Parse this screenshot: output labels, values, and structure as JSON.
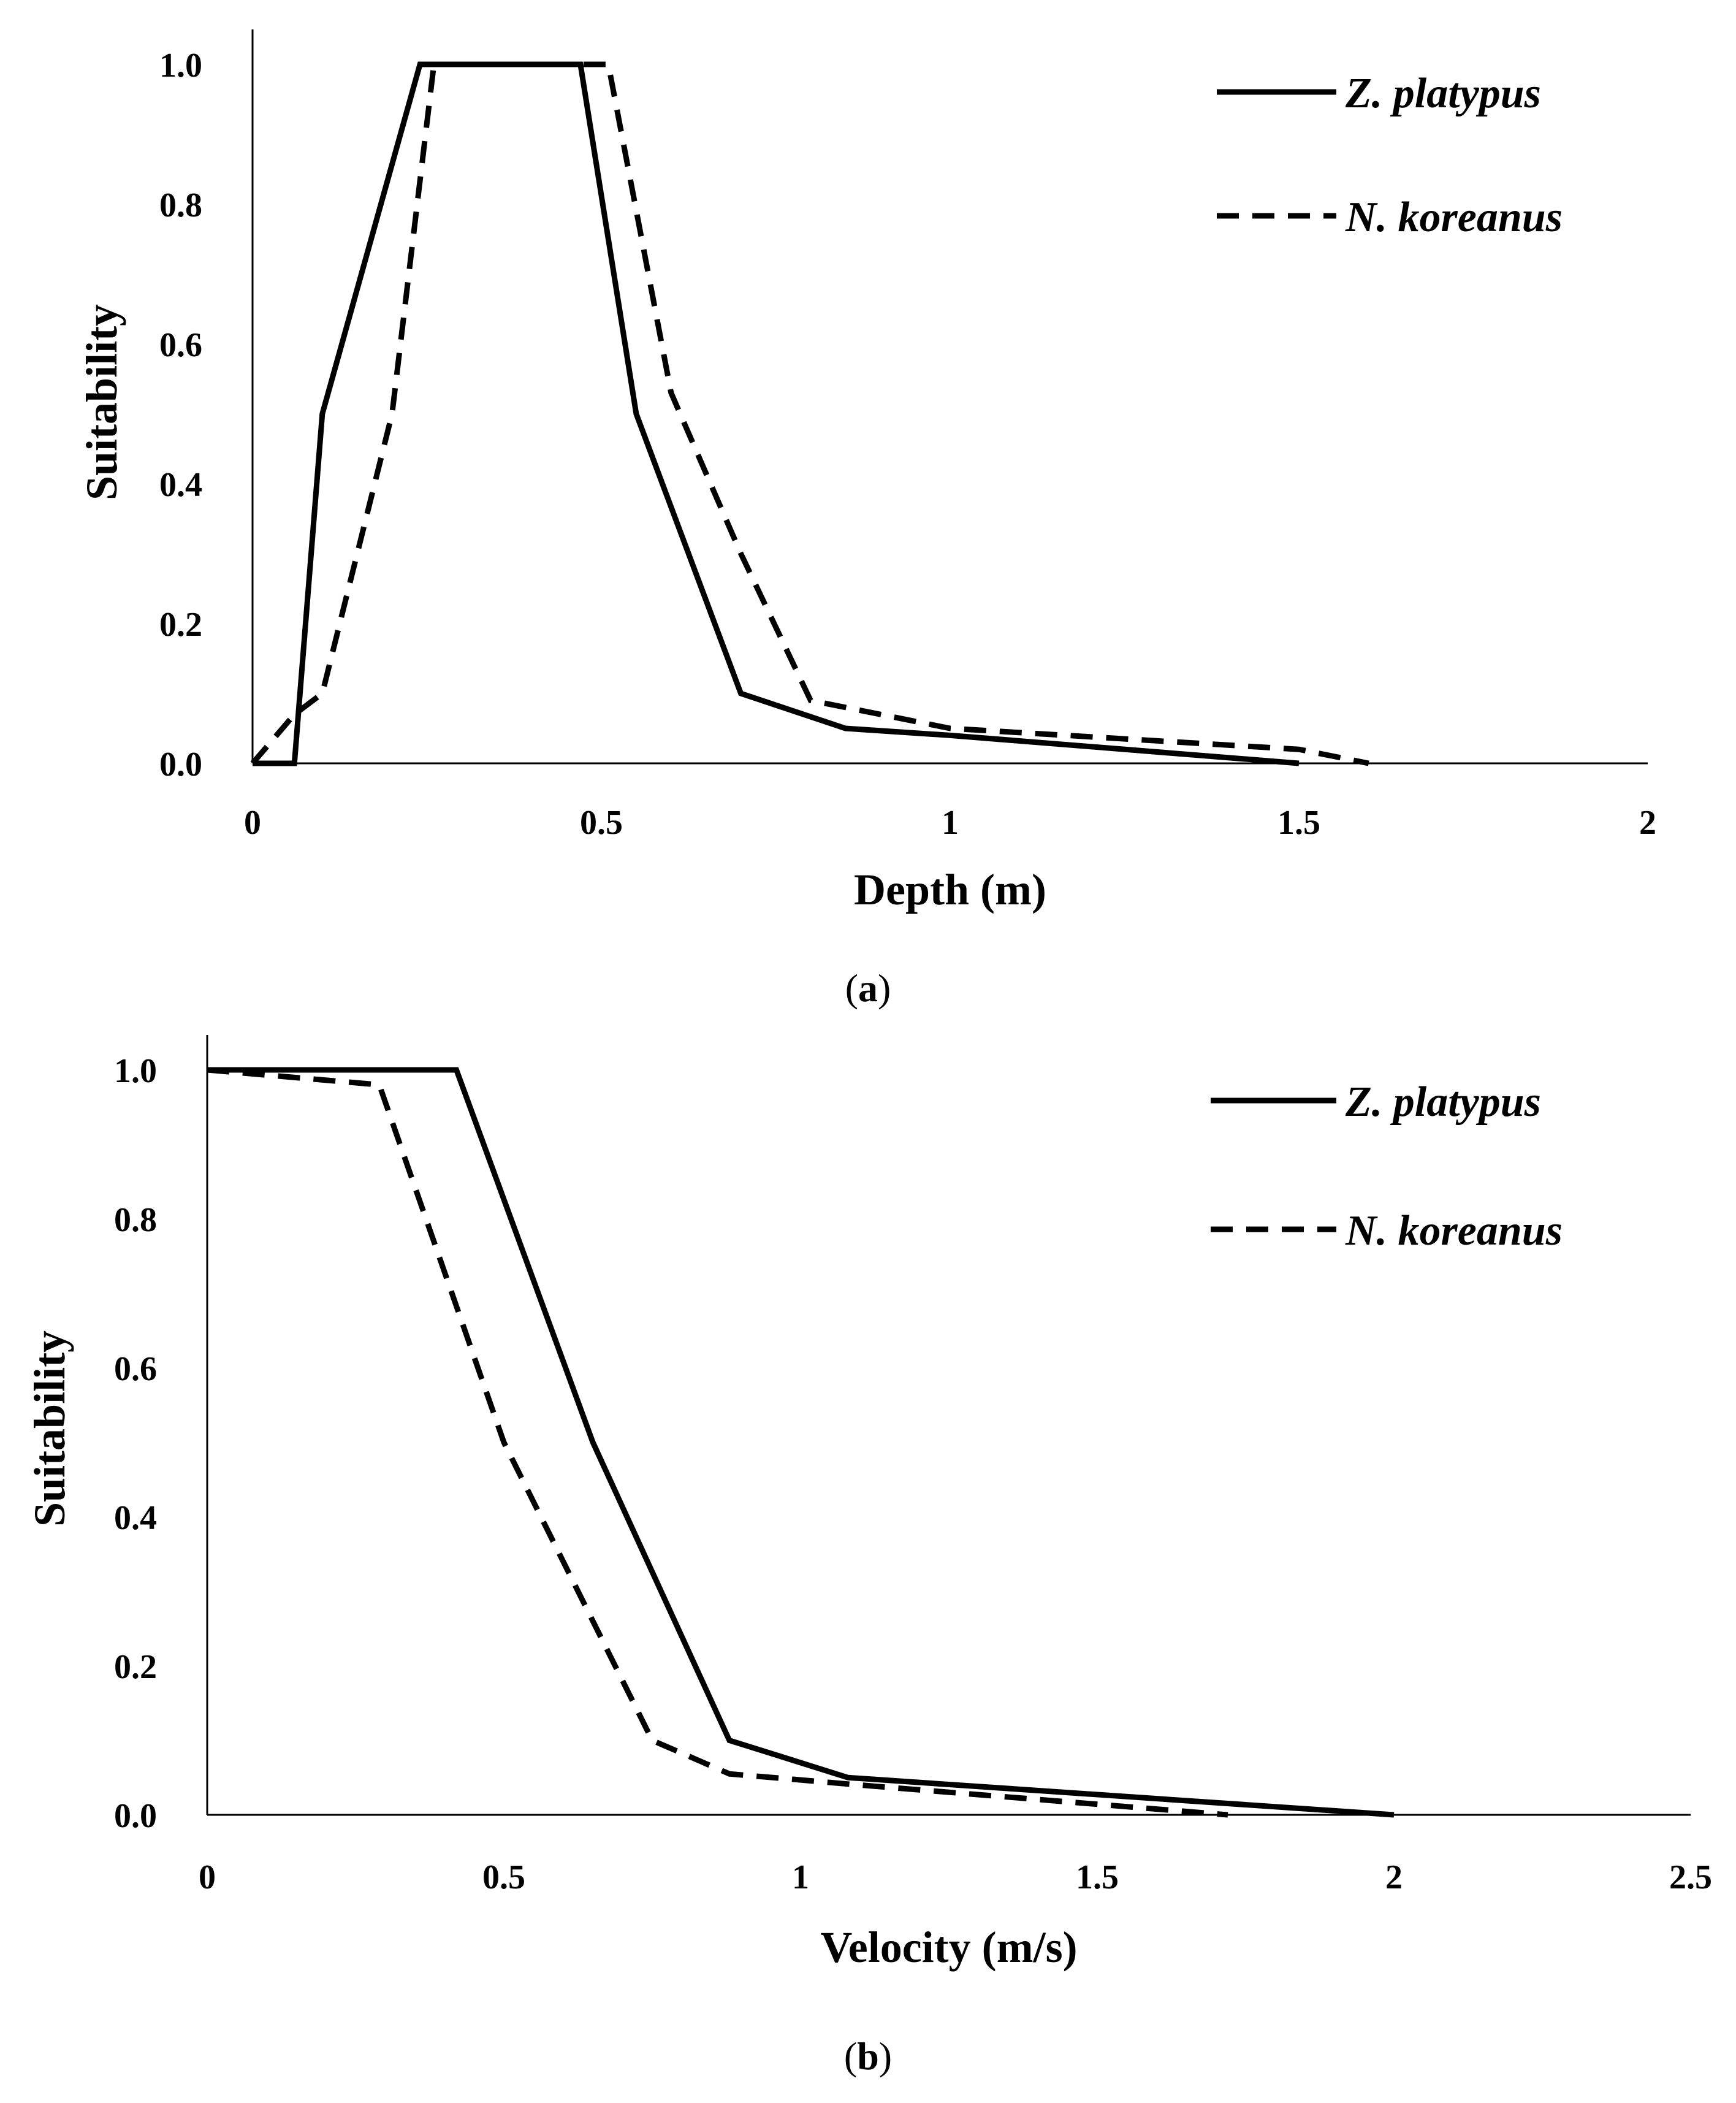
{
  "chart_data": [
    {
      "type": "line",
      "panel_label": "a",
      "xlabel": "Depth (m)",
      "ylabel": "Suitability",
      "xlim": [
        0,
        2
      ],
      "ylim": [
        0,
        1
      ],
      "xticks": [
        "0",
        "0.5",
        "1",
        "1.5",
        "2"
      ],
      "xtick_values": [
        0,
        0.5,
        1,
        1.5,
        2
      ],
      "yticks": [
        "0.0",
        "0.2",
        "0.4",
        "0.6",
        "0.8",
        "1.0"
      ],
      "ytick_values": [
        0,
        0.2,
        0.4,
        0.6,
        0.8,
        1.0
      ],
      "legend_position": "top-right",
      "grid": false,
      "series": [
        {
          "name": "Z. platypus",
          "style": "solid",
          "x": [
            0,
            0.06,
            0.1,
            0.24,
            0.47,
            0.55,
            0.7,
            0.85,
            1.0,
            1.5
          ],
          "y": [
            0,
            0,
            0.5,
            1.0,
            1.0,
            0.5,
            0.1,
            0.05,
            0.04,
            0
          ]
        },
        {
          "name": "N. koreanus",
          "style": "dashed",
          "x": [
            0,
            0.06,
            0.1,
            0.2,
            0.26,
            0.51,
            0.6,
            0.7,
            0.8,
            1.0,
            1.5,
            1.6
          ],
          "y": [
            0,
            0.07,
            0.1,
            0.5,
            1.0,
            1.0,
            0.53,
            0.3,
            0.09,
            0.05,
            0.02,
            0
          ]
        }
      ]
    },
    {
      "type": "line",
      "panel_label": "b",
      "xlabel": "Velocity (m/s)",
      "ylabel": "Suitability",
      "xlim": [
        0,
        2.5
      ],
      "ylim": [
        0,
        1
      ],
      "xticks": [
        "0",
        "0.5",
        "1",
        "1.5",
        "2",
        "2.5"
      ],
      "xtick_values": [
        0,
        0.5,
        1,
        1.5,
        2,
        2.5
      ],
      "yticks": [
        "0.0",
        "0.2",
        "0.4",
        "0.6",
        "0.8",
        "1.0"
      ],
      "ytick_values": [
        0,
        0.2,
        0.4,
        0.6,
        0.8,
        1.0
      ],
      "legend_position": "top-right",
      "grid": false,
      "series": [
        {
          "name": "Z. platypus",
          "style": "solid",
          "x": [
            0,
            0.42,
            0.65,
            0.88,
            1.08,
            2.0
          ],
          "y": [
            1.0,
            1.0,
            0.5,
            0.1,
            0.05,
            0
          ]
        },
        {
          "name": "N. koreanus",
          "style": "dashed",
          "x": [
            0,
            0.29,
            0.5,
            0.75,
            0.88,
            1.1,
            1.72
          ],
          "y": [
            1.0,
            0.98,
            0.5,
            0.1,
            0.055,
            0.04,
            0
          ]
        }
      ]
    }
  ]
}
